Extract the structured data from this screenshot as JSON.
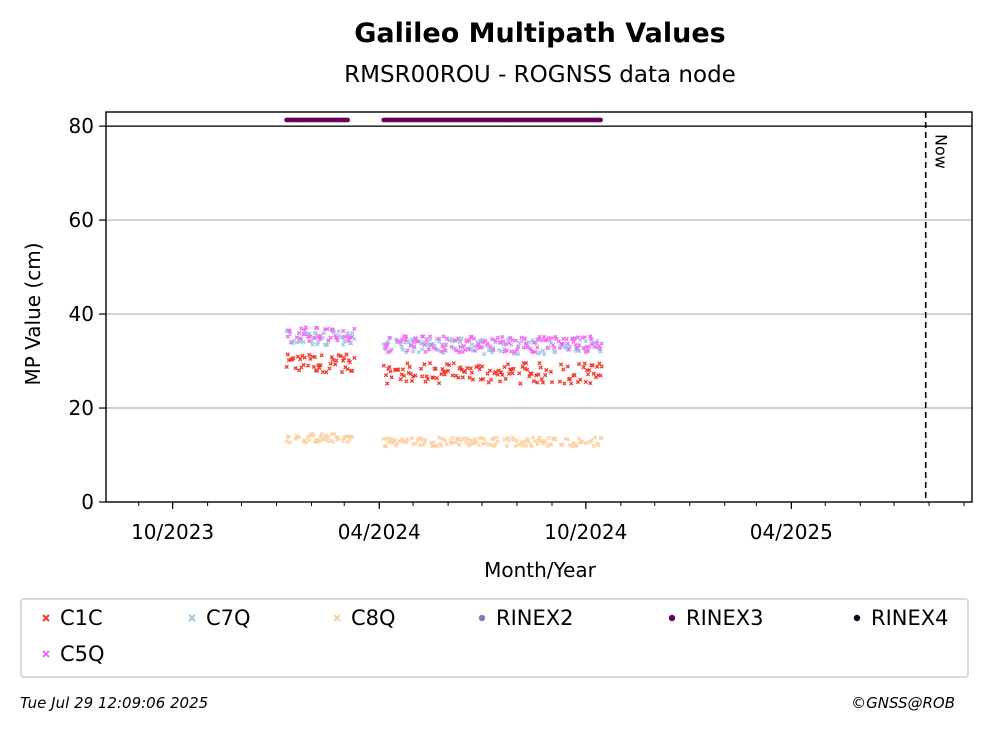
{
  "chart_data": {
    "type": "scatter",
    "title": "Galileo Multipath Values",
    "subtitle": "RMSR00ROU - ROGNSS data node",
    "xlabel": "Month/Year",
    "ylabel": "MP Value (cm)",
    "x_axis": {
      "type": "date",
      "range": [
        "2023-08-03",
        "2025-09-08"
      ],
      "tick_labels": [
        "10/2023",
        "04/2024",
        "10/2024",
        "04/2025"
      ],
      "tick_dates": [
        "2023-10-01",
        "2024-04-01",
        "2024-10-01",
        "2025-04-01"
      ]
    },
    "y_axis": {
      "range": [
        0,
        83
      ],
      "ticks": [
        0,
        20,
        40,
        60,
        80
      ]
    },
    "grid": "horizontal",
    "now_marker": {
      "label": "Now",
      "date": "2025-07-29"
    },
    "series": [
      {
        "name": "C1C",
        "color": "#ef3b2c",
        "marker": "x",
        "segments": [
          {
            "start": "2024-01-10",
            "end": "2024-03-10",
            "mean": 29.5,
            "spread": 1.2
          },
          {
            "start": "2024-04-05",
            "end": "2024-10-15",
            "mean": 27.4,
            "spread": 1.4
          }
        ]
      },
      {
        "name": "C7Q",
        "color": "#9ecae1",
        "marker": "x",
        "segments": [
          {
            "start": "2024-01-10",
            "end": "2024-03-10",
            "mean": 35.0,
            "spread": 1.0
          },
          {
            "start": "2024-04-05",
            "end": "2024-10-15",
            "mean": 33.2,
            "spread": 1.1
          }
        ]
      },
      {
        "name": "C8Q",
        "color": "#fdd0a2",
        "marker": "x",
        "segments": [
          {
            "start": "2024-01-10",
            "end": "2024-03-10",
            "mean": 13.6,
            "spread": 0.6
          },
          {
            "start": "2024-04-05",
            "end": "2024-10-15",
            "mean": 12.8,
            "spread": 0.6
          }
        ]
      },
      {
        "name": "RINEX2",
        "color": "#807dba",
        "marker": "o",
        "segments": []
      },
      {
        "name": "RINEX3",
        "color": "#67005f",
        "marker": "o",
        "segments": [
          {
            "start": "2024-01-10",
            "end": "2024-03-05",
            "mean": 81.3,
            "spread": 0.0
          },
          {
            "start": "2024-04-05",
            "end": "2024-10-15",
            "mean": 81.3,
            "spread": 0.0
          }
        ]
      },
      {
        "name": "RINEX4",
        "color": "#1a0020",
        "marker": "o",
        "segments": []
      },
      {
        "name": "C5Q",
        "color": "#f768f7",
        "marker": "x",
        "segments": [
          {
            "start": "2024-01-10",
            "end": "2024-03-10",
            "mean": 35.6,
            "spread": 1.0
          },
          {
            "start": "2024-04-05",
            "end": "2024-10-15",
            "mean": 33.6,
            "spread": 1.1
          }
        ]
      }
    ]
  },
  "legend": {
    "items": [
      {
        "label": "C1C",
        "color": "#ef3b2c",
        "marker": "x"
      },
      {
        "label": "C7Q",
        "color": "#9ecae1",
        "marker": "x"
      },
      {
        "label": "C8Q",
        "color": "#fdd0a2",
        "marker": "x"
      },
      {
        "label": "RINEX2",
        "color": "#807dba",
        "marker": "o"
      },
      {
        "label": "RINEX3",
        "color": "#67005f",
        "marker": "o"
      },
      {
        "label": "RINEX4",
        "color": "#1a0020",
        "marker": "o"
      },
      {
        "label": "C5Q",
        "color": "#f768f7",
        "marker": "x"
      }
    ]
  },
  "footer": {
    "timestamp": "Tue Jul 29 12:09:06 2025",
    "copyright": "©GNSS@ROB"
  }
}
